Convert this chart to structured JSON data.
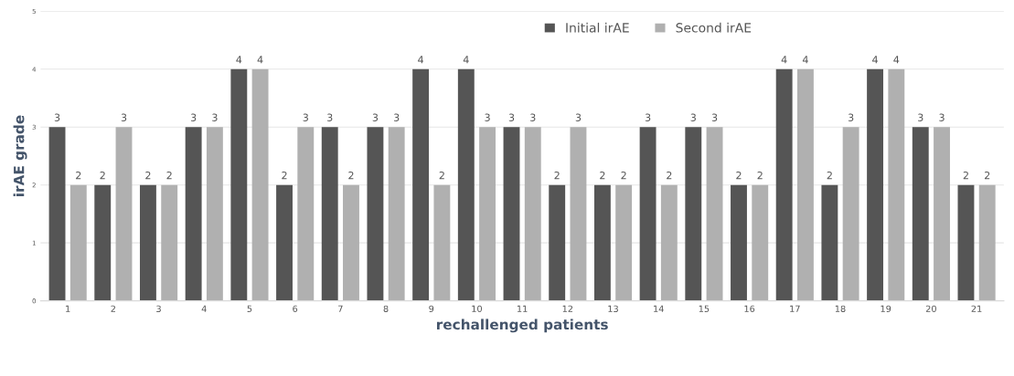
{
  "chart_data": {
    "type": "bar",
    "xlabel": "rechallenged patients",
    "ylabel": "irAE grade",
    "categories": [
      "1",
      "2",
      "3",
      "4",
      "5",
      "6",
      "7",
      "8",
      "9",
      "10",
      "11",
      "12",
      "13",
      "14",
      "15",
      "16",
      "17",
      "18",
      "19",
      "20",
      "21"
    ],
    "series": [
      {
        "name": "Initial irAE",
        "color": "#555555",
        "values": [
          3,
          2,
          2,
          3,
          4,
          2,
          3,
          3,
          4,
          4,
          3,
          2,
          2,
          3,
          3,
          2,
          4,
          2,
          4,
          3,
          2
        ]
      },
      {
        "name": "Second irAE",
        "color": "#b0b0b0",
        "values": [
          2,
          3,
          2,
          3,
          4,
          3,
          2,
          3,
          2,
          3,
          3,
          3,
          2,
          2,
          3,
          2,
          4,
          3,
          4,
          3,
          2
        ]
      }
    ],
    "ylim": [
      0,
      5
    ],
    "yticks": [
      0,
      1,
      2,
      3,
      4,
      5
    ],
    "grid": "y",
    "legend": "top right",
    "data_labels": true
  }
}
